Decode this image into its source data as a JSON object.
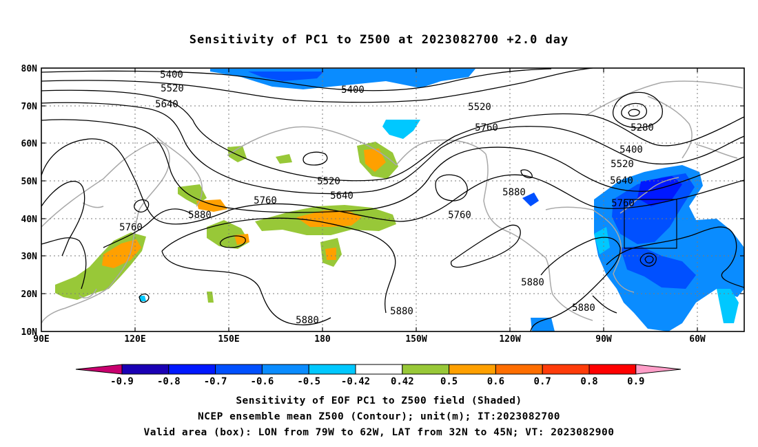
{
  "title": "Sensitivity of PC1 to Z500 at 2023082700 +2.0 day",
  "lat_labels": [
    "80N",
    "70N",
    "60N",
    "50N",
    "40N",
    "30N",
    "20N",
    "10N"
  ],
  "lon_labels": [
    "90E",
    "120E",
    "150E",
    "180",
    "150W",
    "120W",
    "90W",
    "60W"
  ],
  "contour_labels": {
    "c5400a": "5400",
    "c5520a": "5520",
    "c5640a": "5640",
    "c5400b": "5400",
    "c5520b": "5520",
    "c5760a": "5760",
    "c5280": "5280",
    "c5400c": "5400",
    "c5520c": "5520",
    "c5640b": "5640",
    "c5760b": "5760",
    "c5520d": "5520",
    "c5640c": "5640",
    "c5760c": "5760",
    "c5760d": "5760",
    "c5880a": "5880",
    "c5760e": "5760",
    "c5880b": "5880",
    "c5880c": "5880",
    "c5880d": "5880",
    "c5880e": "5880",
    "c5880f": "5880"
  },
  "colorbar": {
    "colors": [
      "#c8006e",
      "#1a00b4",
      "#0018ff",
      "#0050ff",
      "#0a8cff",
      "#00c8ff",
      "#ffffff",
      "#98c838",
      "#ffa000",
      "#ff6e00",
      "#ff3c0a",
      "#ff0000",
      "#ff9ec8"
    ],
    "ticks": [
      "-0.9",
      "-0.8",
      "-0.7",
      "-0.6",
      "-0.5",
      "-0.42",
      "0.42",
      "0.5",
      "0.6",
      "0.7",
      "0.8",
      "0.9"
    ]
  },
  "caption": {
    "line1": "Sensitivity of EOF PC1 to Z500 field (Shaded)",
    "line2": "NCEP ensemble mean Z500 (Contour); unit(m); IT:2023082700",
    "line3": "Valid area (box): LON from 79W to 62W, LAT from 32N to 45N; VT: 2023082900"
  }
}
